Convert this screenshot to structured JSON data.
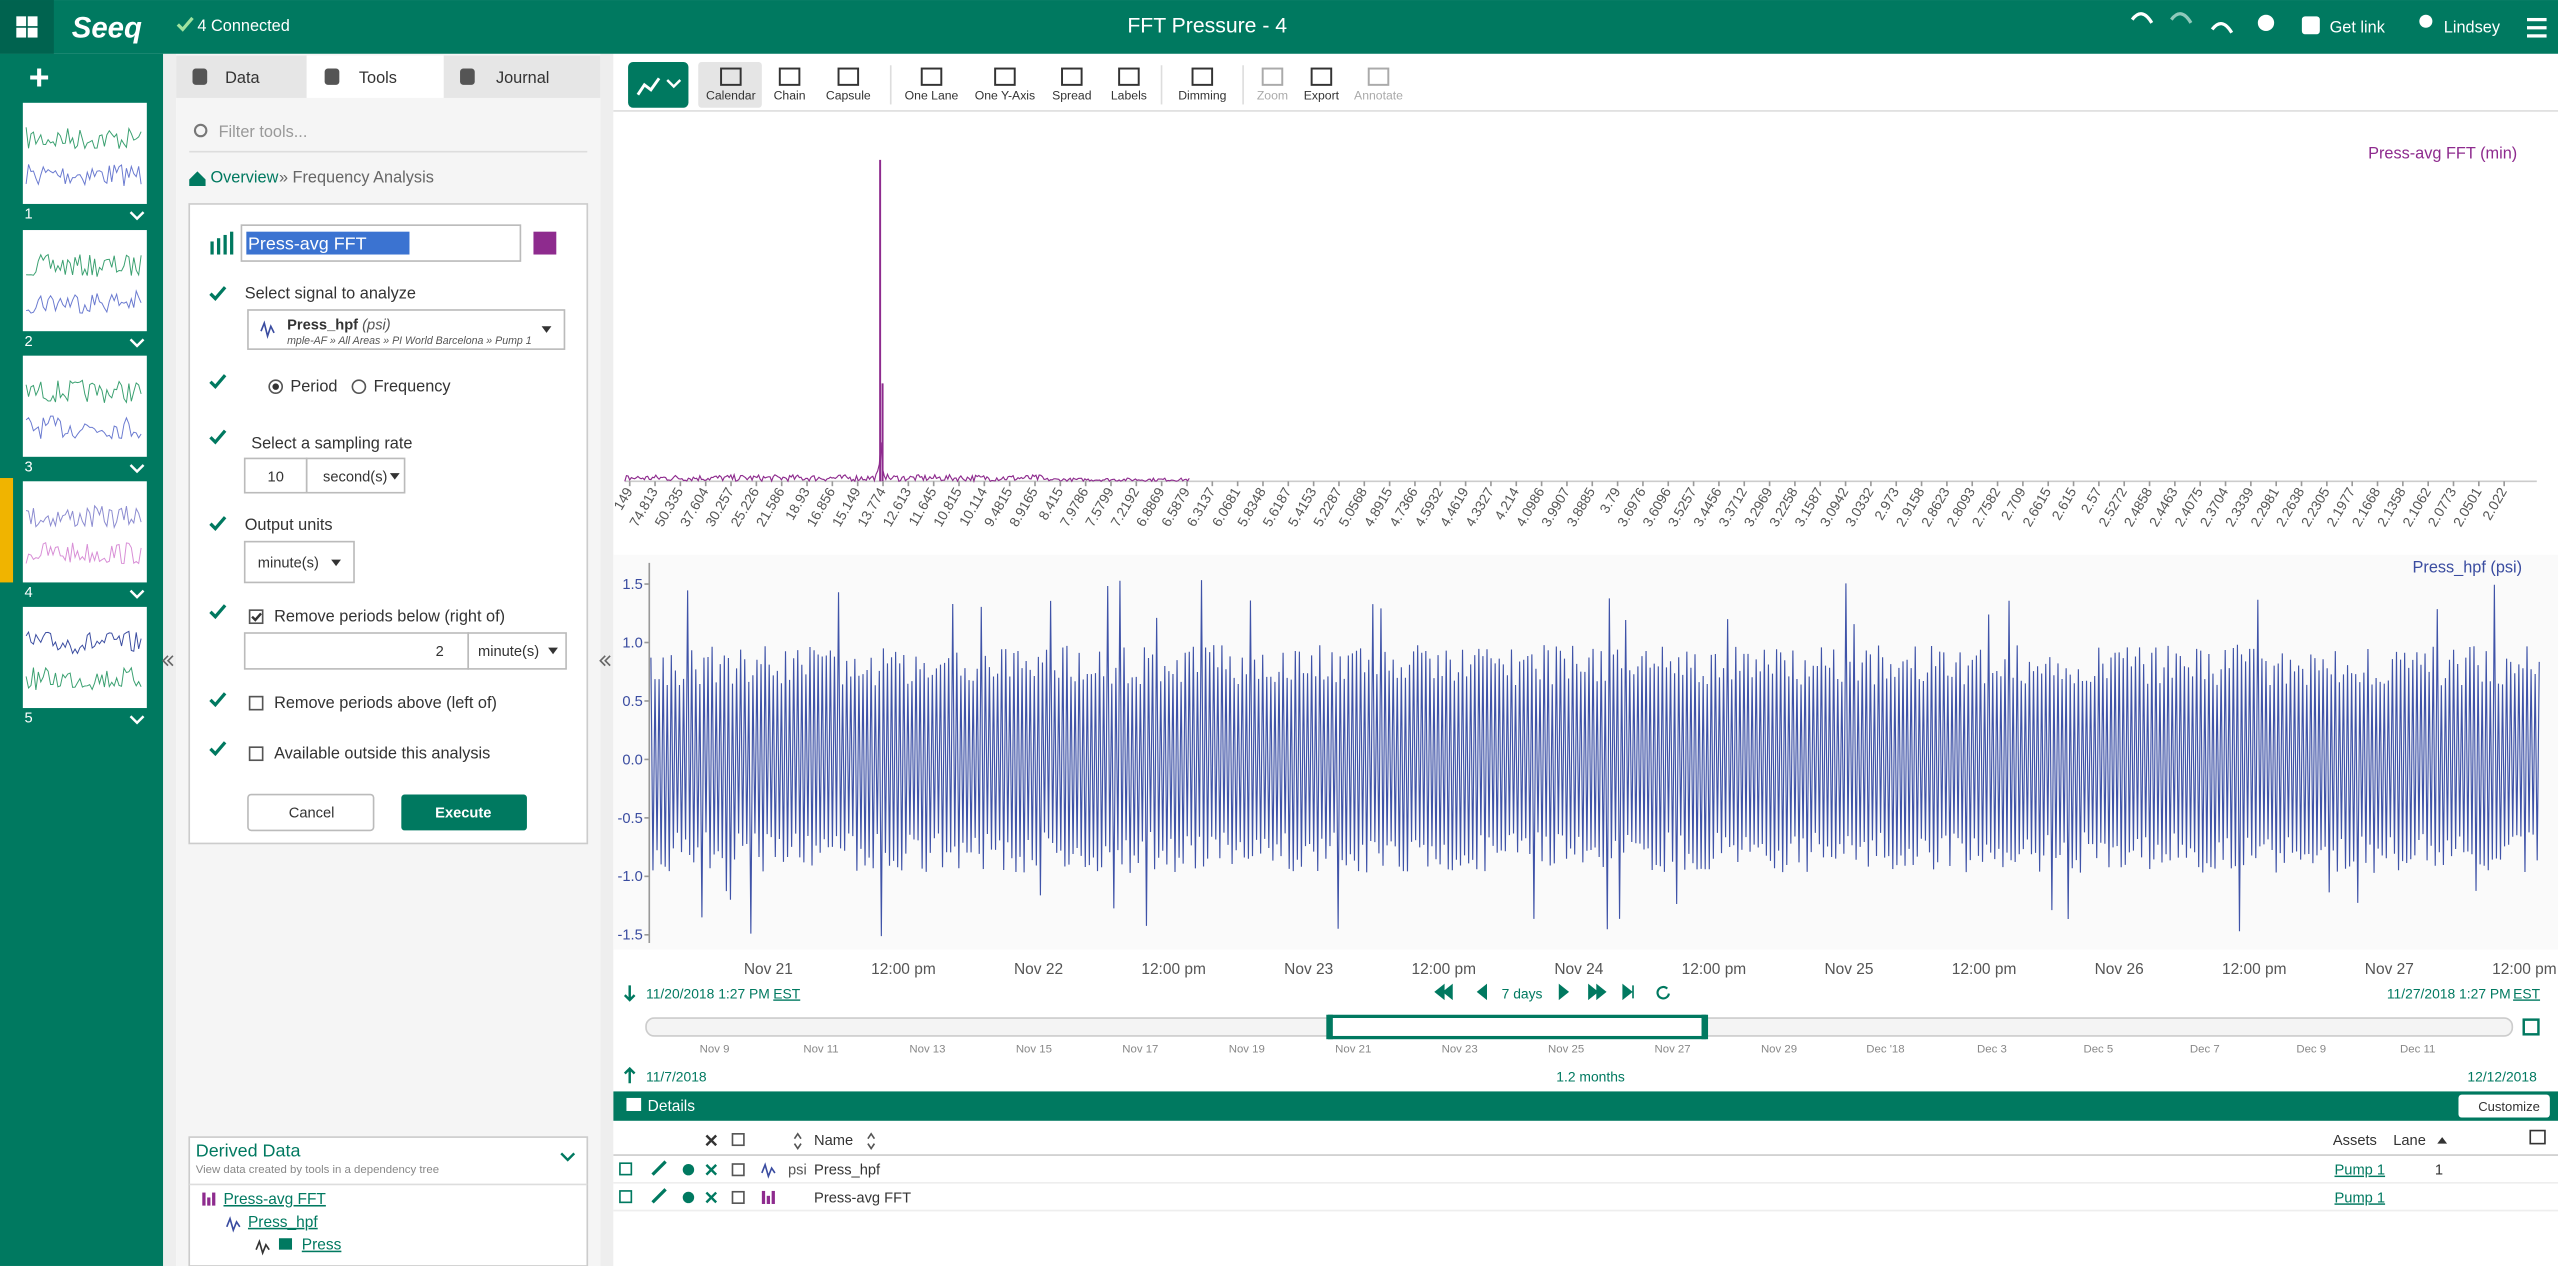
{
  "header": {
    "logo": "Seeq",
    "connection": "4 Connected",
    "title": "FFT Pressure - 4",
    "get_link": "Get link",
    "user": "Lindsey"
  },
  "worksheets": [
    1,
    2,
    3,
    4,
    5
  ],
  "tools_panel": {
    "tabs": [
      "Data",
      "Tools",
      "Journal"
    ],
    "filter_placeholder": "Filter tools...",
    "breadcrumb": {
      "link": "Overview",
      "current": "» Frequency Analysis"
    },
    "form": {
      "name": "Press-avg FFT",
      "signal_label": "Select signal to analyze",
      "signal_name": "Press_hpf",
      "signal_unit": "(psi)",
      "signal_path": "mple-AF » All Areas » PI World Barcelona » Pump 1",
      "options": [
        "Period",
        "Frequency"
      ],
      "sampling_label": "Select a sampling rate",
      "sampling_value": 10,
      "sampling_unit": "second(s)",
      "output_label": "Output units",
      "output_unit": "minute(s)",
      "remove_below_label": "Remove periods below (right of)",
      "remove_below_value": 2,
      "remove_below_unit": "minute(s)",
      "remove_above_label": "Remove periods above (left of)",
      "available_label": "Available outside this analysis",
      "cancel": "Cancel",
      "execute": "Execute"
    },
    "derived": {
      "title": "Derived Data",
      "subtitle": "View data created by tools in a dependency tree",
      "tree": [
        "Press-avg FFT",
        "Press_hpf",
        "Press"
      ]
    }
  },
  "toolbar": [
    "Calendar",
    "Chain",
    "Capsule",
    "One Lane",
    "One Y-Axis",
    "Spread",
    "Labels",
    "Dimming",
    "Zoom",
    "Export",
    "Annotate"
  ],
  "fft_chart": {
    "label": "Press-avg FFT (min)",
    "xticks": [
      149,
      74.813,
      50.335,
      37.604,
      30.257,
      25.226,
      21.586,
      18.93,
      16.856,
      15.149,
      13.774,
      12.613,
      11.645,
      10.815,
      10.114,
      9.4815,
      8.9165,
      8.415,
      7.9786,
      7.5799,
      7.2192,
      6.8869,
      6.5879,
      6.3137,
      6.0681,
      5.8348,
      5.6187,
      5.4153,
      5.2287,
      5.0568,
      4.8915,
      4.7366,
      4.5932,
      4.4619,
      4.3327,
      4.214,
      4.0986,
      3.9907,
      3.8885,
      3.79,
      3.6976,
      3.6096,
      3.5257,
      3.4456,
      3.3712,
      3.2969,
      3.2258,
      3.1587,
      3.0942,
      3.0332,
      2.973,
      2.9158,
      2.8623,
      2.8093,
      2.7582,
      2.709,
      2.6615,
      2.615,
      2.57,
      2.5272,
      2.4858,
      2.4463,
      2.4075,
      2.3704,
      2.3339,
      2.2981,
      2.2638,
      2.2305,
      2.1977,
      2.1668,
      2.1358,
      2.1062,
      2.0773,
      2.0501,
      2.022
    ]
  },
  "signal_chart": {
    "label": "Press_hpf (psi)",
    "ylim": [
      -1.5,
      1.5
    ],
    "yticks": [
      1.5,
      {
        "value": 1,
        "label": "1.0"
      },
      0.5,
      {
        "value": 0,
        "label": "0.0"
      },
      -0.5,
      {
        "value": -1,
        "label": "-1.0"
      },
      -1.5
    ],
    "xticks": [
      "Nov 21",
      "12:00 pm",
      "Nov 22",
      "12:00 pm",
      "Nov 23",
      "12:00 pm",
      "Nov 24",
      "12:00 pm",
      "Nov 25",
      "12:00 pm",
      "Nov 26",
      "12:00 pm",
      "Nov 27",
      "12:00 pm"
    ]
  },
  "time_range": {
    "start": "11/20/2018 1:27 PM",
    "start_tz": "EST",
    "duration": "7 days",
    "end": "11/27/2018 1:27 PM",
    "end_tz": "EST"
  },
  "overview": {
    "ticks": [
      "Nov 9",
      "Nov 11",
      "Nov 13",
      "Nov 15",
      "Nov 17",
      "Nov 19",
      "Nov 21",
      "Nov 23",
      "Nov 25",
      "Nov 27",
      "Nov 29",
      "Dec '18",
      "Dec 3",
      "Dec 5",
      "Dec 7",
      "Dec 9",
      "Dec 11"
    ],
    "start": "11/7/2018",
    "duration": "1.2 months",
    "end": "12/12/2018"
  },
  "details": {
    "title": "Details",
    "customize": "Customize",
    "columns": {
      "name": "Name",
      "assets": "Assets",
      "lane": "Lane"
    },
    "rows": [
      {
        "unit": "psi",
        "name": "Press_hpf",
        "asset": "Pump 1",
        "lane": 1
      },
      {
        "name": "Press-avg FFT",
        "asset": "Pump 1"
      }
    ]
  }
}
